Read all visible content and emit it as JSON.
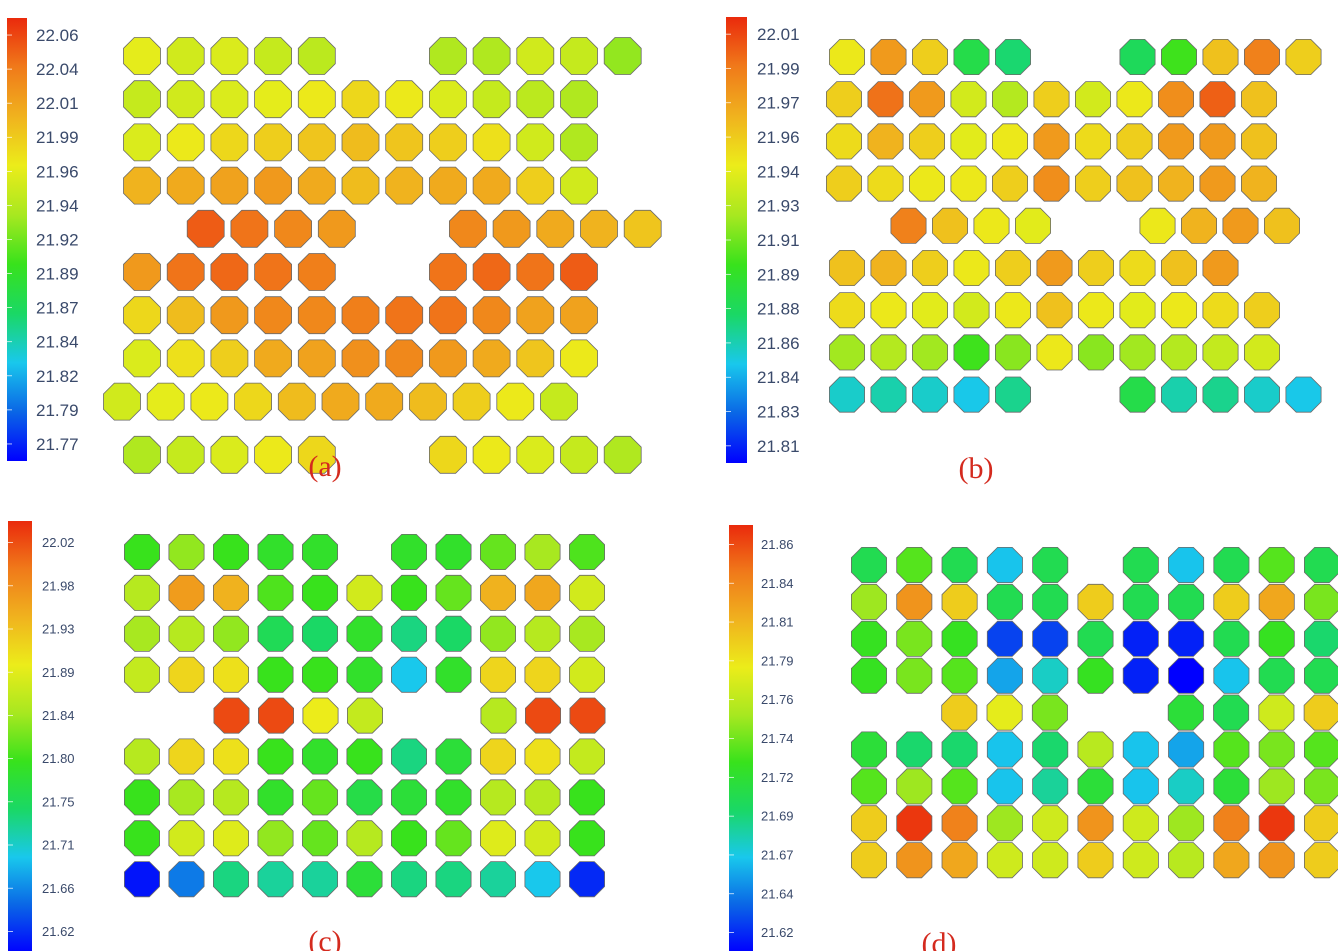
{
  "figure": {
    "colors": {
      "colormap": [
        "#0000ff",
        "#0a66e6",
        "#19c8ec",
        "#1ad865",
        "#38e21c",
        "#a8e820",
        "#ecec1a",
        "#f0b21e",
        "#f07a1a",
        "#ea2a0c"
      ],
      "caption": "#d42a1e",
      "tick_text": "#3a4a6b",
      "hex_stroke": "#6a6a6a"
    }
  },
  "chart_data": [
    {
      "type": "heatmap",
      "caption": "(a)",
      "colorbar": {
        "ticks": [
          "22.06",
          "22.04",
          "22.01",
          "21.99",
          "21.96",
          "21.94",
          "21.92",
          "21.89",
          "21.87",
          "21.84",
          "21.82",
          "21.79",
          "21.77"
        ],
        "min": 21.77,
        "max": 22.06
      },
      "rows": [
        [
          21.96,
          21.95,
          21.955,
          21.945,
          21.94,
          null,
          null,
          21.935,
          21.935,
          21.95,
          21.945,
          21.925
        ],
        [
          21.945,
          21.95,
          21.955,
          21.96,
          21.965,
          21.975,
          21.965,
          21.955,
          21.945,
          21.94,
          21.935
        ],
        [
          21.955,
          21.965,
          21.975,
          21.98,
          21.985,
          21.99,
          21.985,
          21.98,
          21.97,
          21.95,
          21.935
        ],
        [
          21.995,
          22.0,
          22.005,
          22.01,
          22.0,
          21.99,
          21.995,
          22.0,
          22.0,
          21.98,
          21.95
        ],
        [
          null,
          22.04,
          22.03,
          22.02,
          22.01,
          null,
          null,
          22.02,
          22.01,
          22.0,
          21.995,
          21.985
        ],
        [
          22.01,
          22.03,
          22.035,
          22.03,
          22.025,
          null,
          null,
          22.03,
          22.035,
          22.03,
          22.04
        ],
        [
          21.975,
          21.99,
          22.01,
          22.02,
          22.02,
          22.025,
          22.03,
          22.03,
          22.02,
          22.005,
          22.005
        ],
        [
          21.955,
          21.97,
          21.98,
          22.0,
          22.005,
          22.015,
          22.02,
          22.01,
          22.0,
          21.985,
          21.965
        ],
        [
          21.95,
          21.96,
          21.965,
          21.975,
          21.99,
          22.0,
          22.0,
          21.99,
          21.98,
          21.965,
          21.945
        ],
        [
          21.935,
          21.945,
          21.955,
          21.965,
          21.975,
          null,
          null,
          21.975,
          21.965,
          21.955,
          21.945,
          21.935
        ]
      ]
    },
    {
      "type": "heatmap",
      "caption": "(b)",
      "colorbar": {
        "ticks": [
          "22.01",
          "21.99",
          "21.97",
          "21.96",
          "21.94",
          "21.93",
          "21.91",
          "21.89",
          "21.88",
          "21.86",
          "21.84",
          "21.83",
          "21.81"
        ],
        "min": 21.81,
        "max": 22.01
      },
      "rows": [
        [
          21.945,
          21.975,
          21.955,
          21.885,
          21.875,
          null,
          null,
          21.88,
          21.9,
          21.96,
          21.985,
          21.955
        ],
        [
          21.955,
          21.99,
          21.975,
          21.935,
          21.925,
          21.955,
          21.935,
          21.945,
          21.98,
          21.995,
          21.96
        ],
        [
          21.95,
          21.965,
          21.955,
          21.94,
          21.945,
          21.975,
          21.95,
          21.955,
          21.975,
          21.975,
          21.96
        ],
        [
          21.955,
          21.95,
          21.945,
          21.945,
          21.955,
          21.98,
          21.955,
          21.96,
          21.965,
          21.975,
          21.965
        ],
        [
          null,
          21.985,
          21.96,
          21.945,
          21.94,
          null,
          null,
          21.945,
          21.965,
          21.975,
          21.96
        ],
        [
          21.96,
          21.965,
          21.955,
          21.945,
          21.955,
          21.975,
          21.955,
          21.95,
          21.96,
          21.975
        ],
        [
          21.95,
          21.945,
          21.94,
          21.935,
          21.945,
          21.96,
          21.945,
          21.94,
          21.945,
          21.95,
          21.955
        ],
        [
          21.92,
          21.925,
          21.92,
          21.9,
          21.915,
          21.945,
          21.915,
          21.92,
          21.925,
          21.93,
          21.935
        ],
        [
          21.86,
          21.865,
          21.86,
          21.855,
          21.87,
          null,
          null,
          21.885,
          21.865,
          21.87,
          21.86,
          21.855
        ]
      ]
    },
    {
      "type": "heatmap",
      "caption": "(c)",
      "colorbar": {
        "ticks": [
          "22.02",
          "21.98",
          "21.93",
          "21.89",
          "21.84",
          "21.80",
          "21.75",
          "21.71",
          "21.66",
          "21.62"
        ],
        "min": 21.6,
        "max": 22.05
      },
      "rows": [
        [
          21.8,
          21.84,
          21.8,
          21.79,
          21.79,
          null,
          21.79,
          21.79,
          21.82,
          21.85,
          21.81
        ],
        [
          21.86,
          21.97,
          21.95,
          21.81,
          21.8,
          21.88,
          21.8,
          21.82,
          21.95,
          21.96,
          21.88
        ],
        [
          21.85,
          21.86,
          21.84,
          21.76,
          21.75,
          21.79,
          21.74,
          21.75,
          21.84,
          21.86,
          21.85
        ],
        [
          21.87,
          21.92,
          21.91,
          21.8,
          21.8,
          21.79,
          21.7,
          21.79,
          21.92,
          21.92,
          21.88
        ],
        [
          null,
          22.03,
          22.03,
          21.9,
          21.87,
          null,
          null,
          21.86,
          22.03,
          22.03
        ],
        [
          21.86,
          21.92,
          21.91,
          21.8,
          21.79,
          21.8,
          21.74,
          21.78,
          21.92,
          21.91,
          21.87
        ],
        [
          21.8,
          21.85,
          21.86,
          21.79,
          21.82,
          21.77,
          21.78,
          21.79,
          21.86,
          21.86,
          21.8
        ],
        [
          21.8,
          21.88,
          21.89,
          21.84,
          21.82,
          21.86,
          21.8,
          21.82,
          21.89,
          21.88,
          21.8
        ],
        [
          21.61,
          21.66,
          21.74,
          21.73,
          21.73,
          21.78,
          21.74,
          21.74,
          21.73,
          21.7,
          21.62
        ]
      ]
    },
    {
      "type": "heatmap",
      "caption": "(d)",
      "colorbar": {
        "ticks": [
          "21.86",
          "21.84",
          "21.81",
          "21.79",
          "21.76",
          "21.74",
          "21.72",
          "21.69",
          "21.67",
          "21.64",
          "21.62"
        ],
        "min": 21.6,
        "max": 21.875
      },
      "rows": [
        [
          21.7,
          21.73,
          21.7,
          21.66,
          21.7,
          null,
          21.7,
          21.66,
          21.7,
          21.73,
          21.7
        ],
        [
          21.75,
          21.83,
          21.8,
          21.7,
          21.7,
          21.8,
          21.7,
          21.7,
          21.8,
          21.82,
          21.74
        ],
        [
          21.72,
          21.74,
          21.72,
          21.62,
          21.62,
          21.7,
          21.61,
          21.61,
          21.7,
          21.72,
          21.69
        ],
        [
          21.72,
          21.74,
          21.73,
          21.65,
          21.67,
          21.72,
          21.61,
          21.6,
          21.66,
          21.7,
          21.7
        ],
        [
          null,
          21.8,
          21.78,
          21.74,
          null,
          null,
          21.71,
          21.7,
          21.77,
          21.8
        ],
        [
          21.71,
          21.69,
          21.69,
          21.66,
          21.69,
          21.76,
          21.66,
          21.65,
          21.73,
          21.74,
          21.73
        ],
        [
          21.73,
          21.75,
          21.73,
          21.66,
          21.68,
          21.71,
          21.66,
          21.67,
          21.71,
          21.75,
          21.74
        ],
        [
          21.8,
          21.87,
          21.84,
          21.75,
          21.77,
          21.83,
          21.77,
          21.75,
          21.84,
          21.87,
          21.8
        ],
        [
          21.8,
          21.83,
          21.82,
          21.77,
          21.77,
          21.8,
          21.77,
          21.76,
          21.82,
          21.83,
          21.8
        ]
      ]
    }
  ]
}
